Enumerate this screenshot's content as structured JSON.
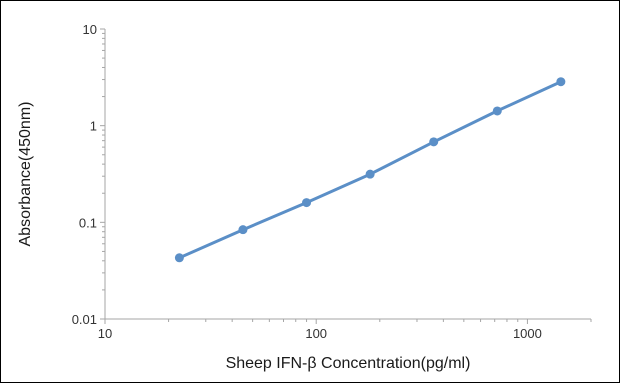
{
  "chart_data": {
    "type": "line",
    "title": "",
    "xlabel": "Sheep IFN-β Concentration(pg/ml)",
    "ylabel": "Absorbance(450nm)",
    "x_scale": "log",
    "y_scale": "log",
    "xlim": [
      10,
      2000
    ],
    "ylim": [
      0.01,
      10
    ],
    "x_ticks": [
      10,
      100,
      1000
    ],
    "x_tick_labels": [
      "10",
      "100",
      "1000"
    ],
    "y_ticks": [
      0.01,
      0.1,
      1,
      10
    ],
    "y_tick_labels": [
      "0.01",
      "0.1",
      "1",
      "10"
    ],
    "grid": false,
    "legend": "none",
    "series": [
      {
        "color": "#5b8fc7",
        "x": [
          22.5,
          45,
          90,
          180,
          360,
          720,
          1440
        ],
        "y": [
          0.043,
          0.084,
          0.16,
          0.315,
          0.68,
          1.42,
          2.85
        ]
      }
    ]
  }
}
